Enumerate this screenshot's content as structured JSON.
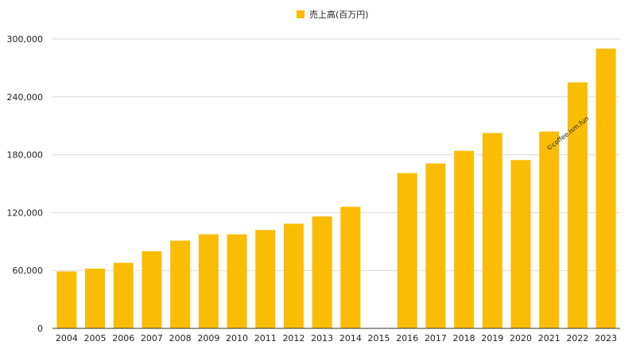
{
  "chart_data": {
    "type": "bar",
    "legend": {
      "label": "売上高(百万円)",
      "placement": "top-center"
    },
    "categories": [
      "2004",
      "2005",
      "2006",
      "2007",
      "2008",
      "2009",
      "2010",
      "2011",
      "2012",
      "2013",
      "2014",
      "2015",
      "2016",
      "2017",
      "2018",
      "2019",
      "2020",
      "2021",
      "2022",
      "2023"
    ],
    "series": [
      {
        "name": "売上高(百万円)",
        "values": [
          59000,
          62000,
          68000,
          80000,
          91000,
          97500,
          97500,
          102000,
          108500,
          116000,
          126000,
          0,
          161000,
          171000,
          184000,
          202500,
          174500,
          204000,
          255000,
          290000
        ]
      }
    ],
    "ylim": [
      0,
      300000
    ],
    "yticks": [
      0,
      60000,
      120000,
      180000,
      240000,
      300000
    ],
    "ytick_labels": [
      "0",
      "60,000",
      "120,000",
      "180,000",
      "240,000",
      "300,000"
    ],
    "grid": true,
    "colors": {
      "bar": "#FBBC04",
      "grid": "#d9d9d9",
      "axis": "#333333"
    },
    "watermark": "©coffee.ism.fun"
  }
}
